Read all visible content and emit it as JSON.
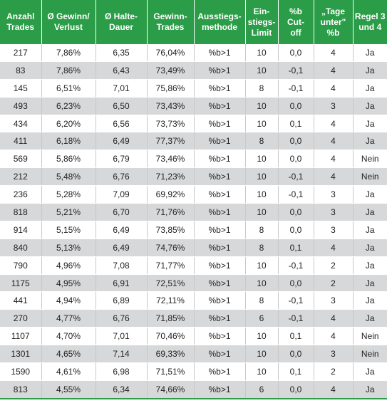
{
  "table": {
    "headers": [
      "Anzahl\nTrades",
      "Ø Gewinn/\nVerlust",
      "Ø Halte-\nDauer",
      "Gewinn-\nTrades",
      "Ausstiegs-\nmethode",
      "Ein-\nstiegs-\nLimit",
      "%b\nCut-\noff",
      "„Tage\nunter\"\n%b",
      "Regel 3\nund 4"
    ],
    "rows": [
      [
        "217",
        "7,86%",
        "6,35",
        "76,04%",
        "%b>1",
        "10",
        "0,0",
        "4",
        "Ja"
      ],
      [
        "83",
        "7,86%",
        "6,43",
        "73,49%",
        "%b>1",
        "10",
        "-0,1",
        "4",
        "Ja"
      ],
      [
        "145",
        "6,51%",
        "7,01",
        "75,86%",
        "%b>1",
        "8",
        "-0,1",
        "4",
        "Ja"
      ],
      [
        "493",
        "6,23%",
        "6,50",
        "73,43%",
        "%b>1",
        "10",
        "0,0",
        "3",
        "Ja"
      ],
      [
        "434",
        "6,20%",
        "6,56",
        "73,73%",
        "%b>1",
        "10",
        "0,1",
        "4",
        "Ja"
      ],
      [
        "411",
        "6,18%",
        "6,49",
        "77,37%",
        "%b>1",
        "8",
        "0,0",
        "4",
        "Ja"
      ],
      [
        "569",
        "5,86%",
        "6,79",
        "73,46%",
        "%b>1",
        "10",
        "0,0",
        "4",
        "Nein"
      ],
      [
        "212",
        "5,48%",
        "6,76",
        "71,23%",
        "%b>1",
        "10",
        "-0,1",
        "4",
        "Nein"
      ],
      [
        "236",
        "5,28%",
        "7,09",
        "69,92%",
        "%b>1",
        "10",
        "-0,1",
        "3",
        "Ja"
      ],
      [
        "818",
        "5,21%",
        "6,70",
        "71,76%",
        "%b>1",
        "10",
        "0,0",
        "3",
        "Ja"
      ],
      [
        "914",
        "5,15%",
        "6,49",
        "73,85%",
        "%b>1",
        "8",
        "0,0",
        "3",
        "Ja"
      ],
      [
        "840",
        "5,13%",
        "6,49",
        "74,76%",
        "%b>1",
        "8",
        "0,1",
        "4",
        "Ja"
      ],
      [
        "790",
        "4,96%",
        "7,08",
        "71,77%",
        "%b>1",
        "10",
        "-0,1",
        "2",
        "Ja"
      ],
      [
        "1175",
        "4,95%",
        "6,91",
        "72,51%",
        "%b>1",
        "10",
        "0,0",
        "2",
        "Ja"
      ],
      [
        "441",
        "4,94%",
        "6,89",
        "72,11%",
        "%b>1",
        "8",
        "-0,1",
        "3",
        "Ja"
      ],
      [
        "270",
        "4,77%",
        "6,76",
        "71,85%",
        "%b>1",
        "6",
        "-0,1",
        "4",
        "Ja"
      ],
      [
        "1107",
        "4,70%",
        "7,01",
        "70,46%",
        "%b>1",
        "10",
        "0,1",
        "4",
        "Nein"
      ],
      [
        "1301",
        "4,65%",
        "7,14",
        "69,33%",
        "%b>1",
        "10",
        "0,0",
        "3",
        "Nein"
      ],
      [
        "1590",
        "4,61%",
        "6,98",
        "71,51%",
        "%b>1",
        "10",
        "0,1",
        "2",
        "Ja"
      ],
      [
        "813",
        "4,55%",
        "6,34",
        "74,66%",
        "%b>1",
        "6",
        "0,0",
        "4",
        "Ja"
      ]
    ]
  },
  "colors": {
    "header_bg": "#2b9c47",
    "header_text": "#ffffff",
    "row_alt_bg": "#d7d8d9",
    "row_bg": "#ffffff"
  }
}
